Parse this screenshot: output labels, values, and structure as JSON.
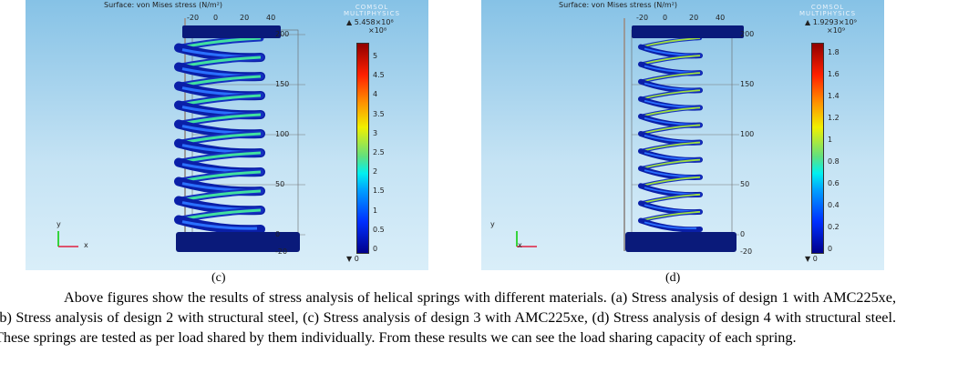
{
  "figures": [
    {
      "id": "c",
      "title": "Surface: von Mises stress (N/m²)",
      "logo": "COMSOL MULTIPHYSICS",
      "max_label": "▲ 5.458×10⁸",
      "scale_label": "×10⁸",
      "min_label": "▼ 0",
      "colorbar_ticks": [
        "5",
        "4.5",
        "4",
        "3.5",
        "3",
        "2.5",
        "2",
        "1.5",
        "1",
        "0.5",
        "0"
      ],
      "y_ticks": [
        "200",
        "150",
        "100",
        "50",
        "0",
        "-20"
      ],
      "x_ticks": [
        "-20",
        "0",
        "20",
        "40"
      ],
      "axis_y": "y",
      "axis_x": "x",
      "caption": "(c)",
      "coils": 10
    },
    {
      "id": "d",
      "title": "Surface: von Mises stress (N/m²)",
      "logo": "COMSOL MULTIPHYSICS",
      "max_label": "▲ 1.9293×10⁹",
      "scale_label": "×10⁹",
      "min_label": "▼ 0",
      "colorbar_ticks": [
        "1.8",
        "1.6",
        "1.4",
        "1.2",
        "1",
        "0.8",
        "0.6",
        "0.4",
        "0.2",
        "0"
      ],
      "y_ticks": [
        "200",
        "150",
        "100",
        "50",
        "0",
        "-20"
      ],
      "x_ticks": [
        "-20",
        "0",
        "20",
        "40"
      ],
      "axis_y": "y",
      "axis_x": "x",
      "caption": "(d)",
      "coils": 11
    }
  ],
  "paragraph": "Above figures show the results of stress analysis of helical springs with different materials. (a) Stress analysis of design 1 with AMC225xe, (b) Stress analysis of design 2 with structural steel, (c) Stress analysis of design 3 with AMC225xe, (d) Stress analysis of design 4 with structural steel. These springs are tested as per load shared by them individually. From these results we can see the load sharing capacity of each spring."
}
